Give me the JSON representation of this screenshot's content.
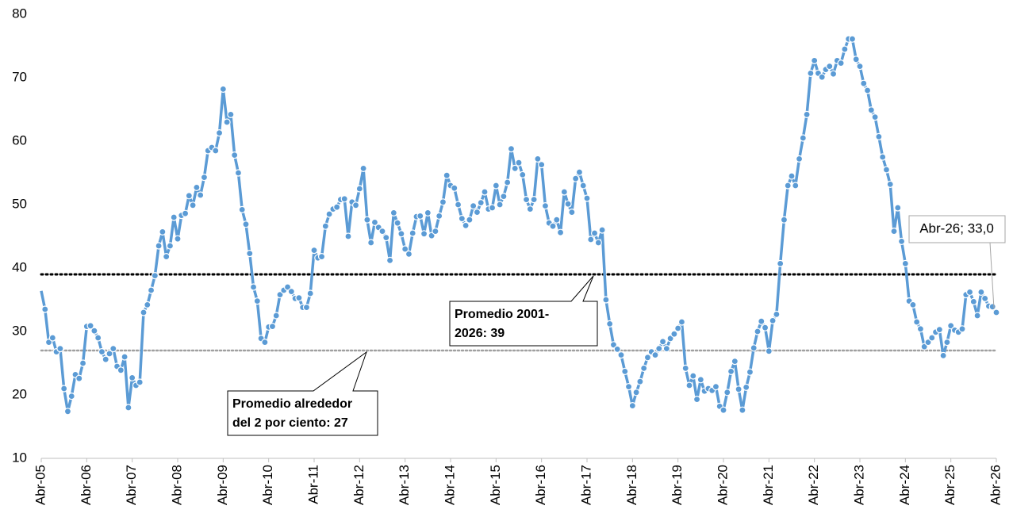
{
  "chart_data": {
    "type": "line",
    "categories": [
      "Abr-05",
      null,
      null,
      null,
      null,
      null,
      null,
      null,
      null,
      null,
      null,
      null,
      "Abr-06",
      null,
      null,
      null,
      null,
      null,
      null,
      null,
      null,
      null,
      null,
      null,
      "Abr-07",
      null,
      null,
      null,
      null,
      null,
      null,
      null,
      null,
      null,
      null,
      null,
      "Abr-08",
      null,
      null,
      null,
      null,
      null,
      null,
      null,
      null,
      null,
      null,
      null,
      "Abr-09",
      null,
      null,
      null,
      null,
      null,
      null,
      null,
      null,
      null,
      null,
      null,
      "Abr-10",
      null,
      null,
      null,
      null,
      null,
      null,
      null,
      null,
      null,
      null,
      null,
      "Abr-11",
      null,
      null,
      null,
      null,
      null,
      null,
      null,
      null,
      null,
      null,
      null,
      "Abr-12",
      null,
      null,
      null,
      null,
      null,
      null,
      null,
      null,
      null,
      null,
      null,
      "Abr-13",
      null,
      null,
      null,
      null,
      null,
      null,
      null,
      null,
      null,
      null,
      null,
      "Abr-14",
      null,
      null,
      null,
      null,
      null,
      null,
      null,
      null,
      null,
      null,
      null,
      "Abr-15",
      null,
      null,
      null,
      null,
      null,
      null,
      null,
      null,
      null,
      null,
      null,
      "Abr-16",
      null,
      null,
      null,
      null,
      null,
      null,
      null,
      null,
      null,
      null,
      null,
      "Abr-17",
      null,
      null,
      null,
      null,
      null,
      null,
      null,
      null,
      null,
      null,
      null,
      "Abr-18",
      null,
      null,
      null,
      null,
      null,
      null,
      null,
      null,
      null,
      null,
      null,
      "Abr-19",
      null,
      null,
      null,
      null,
      null,
      null,
      null,
      null,
      null,
      null,
      null,
      "Abr-20",
      null,
      null,
      null,
      null,
      null,
      null,
      null,
      null,
      null,
      null,
      null,
      "Abr-21",
      null,
      null,
      null,
      null,
      null,
      null,
      null,
      null,
      null,
      null,
      null,
      "Abr-22",
      null,
      null,
      null,
      null,
      null,
      null,
      null,
      null,
      null,
      null,
      null,
      "Abr-23",
      null,
      null,
      null,
      null,
      null,
      null,
      null,
      null,
      null,
      null,
      null,
      "Abr-24",
      null,
      null,
      null,
      null,
      null,
      null,
      null,
      null,
      null,
      null,
      null,
      "Abr-25",
      null,
      null,
      null,
      null,
      null,
      null,
      null,
      null,
      null,
      null,
      null,
      "Abr-26"
    ],
    "values": [
      36.4,
      33.5,
      28.3,
      29,
      26.8,
      27.3,
      21,
      17.4,
      19.8,
      23.2,
      22.6,
      25,
      30.8,
      30.9,
      30.1,
      29,
      26.8,
      25.6,
      26.5,
      27.3,
      24.5,
      23.9,
      26,
      18,
      22.7,
      21.5,
      22,
      33,
      34.2,
      36.5,
      38.8,
      43.5,
      45.7,
      41.8,
      43.5,
      48,
      44.6,
      48.3,
      48.6,
      51.4,
      49.9,
      52.7,
      51.5,
      54.3,
      58.5,
      59,
      58.5,
      61.3,
      68.2,
      63,
      64.2,
      57.8,
      55,
      49.2,
      46.9,
      42.3,
      37,
      34.8,
      28.9,
      28.3,
      30.7,
      30.8,
      32.5,
      35.8,
      36.5,
      37,
      36.3,
      35.2,
      35.3,
      33.8,
      33.8,
      36,
      42.8,
      41.6,
      41.8,
      46.6,
      48.5,
      49.3,
      49.6,
      50.8,
      50.9,
      45,
      50.4,
      49.9,
      52.5,
      55.7,
      47.6,
      44,
      47.2,
      46.4,
      45.8,
      44.8,
      41.2,
      48.7,
      47.1,
      45.4,
      43,
      42.2,
      45.5,
      48.1,
      48.2,
      45.4,
      48.7,
      45.1,
      45.8,
      48.2,
      50.4,
      54.6,
      53,
      52.6,
      50,
      47.8,
      46.7,
      47.6,
      49.8,
      48.8,
      50.3,
      52,
      49.3,
      49.5,
      53,
      50,
      51.3,
      53.5,
      58.8,
      55.7,
      56.6,
      54.7,
      50.8,
      49.3,
      50.8,
      57.2,
      56.3,
      49.8,
      47.1,
      46.6,
      47.6,
      45.6,
      52,
      50.1,
      48.8,
      54.1,
      55.1,
      53,
      51,
      44.5,
      45.5,
      44,
      46,
      35,
      31.2,
      27.9,
      27.2,
      26.3,
      23.7,
      21.3,
      18.3,
      20.4,
      22.1,
      24.2,
      25.9,
      26.8,
      26.3,
      27.3,
      28.4,
      27.3,
      28.9,
      29.6,
      30.5,
      31.5,
      24.2,
      21.5,
      23,
      19.3,
      22.4,
      20.6,
      21,
      20.7,
      21.3,
      18.2,
      17.6,
      20.4,
      23.7,
      25.3,
      20.9,
      17.6,
      21.2,
      23.6,
      27.4,
      30,
      31.6,
      30.6,
      26.9,
      31.7,
      32.7,
      40.7,
      47.6,
      53,
      54.5,
      53,
      57.2,
      60.5,
      64.2,
      70.7,
      72.7,
      70.7,
      70.1,
      71.3,
      71.8,
      70.6,
      72.7,
      72.3,
      74.5,
      76.1,
      76.1,
      72.9,
      71.8,
      69.1,
      68,
      64.9,
      63.8,
      60.7,
      57.5,
      55.5,
      53.2,
      45.8,
      49.5,
      44.2,
      40.7,
      34.8,
      34.2,
      31.5,
      30.4,
      27.6,
      28.3,
      29,
      29.9,
      30.3,
      26.2,
      28.3,
      30.9,
      30.2,
      29.9,
      30.4,
      35.8,
      36.2,
      34.7,
      32.5,
      36.2,
      35.2,
      34,
      33.9,
      33
    ],
    "color": "#5b9bd5",
    "ylim": [
      10,
      80
    ],
    "yticks": [
      10,
      20,
      30,
      40,
      50,
      60,
      70,
      80
    ],
    "reference_lines": [
      {
        "value": 39,
        "color": "#000000",
        "label": [
          "Promedio 2001-",
          "2026: 39"
        ]
      },
      {
        "value": 27,
        "color": "#a0a0a0",
        "label": [
          "Promedio alrededor",
          "del 2 por ciento: 27"
        ]
      }
    ],
    "point_label": "Abr-26; 33,0"
  }
}
